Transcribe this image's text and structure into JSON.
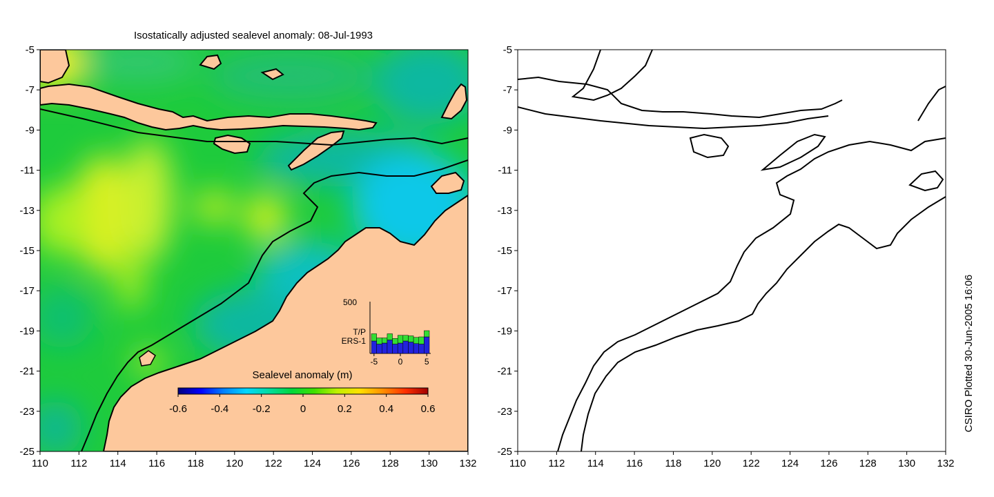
{
  "title": "Isostatically adjusted sealevel anomaly: 08-Jul-1993",
  "credit": "CSIRO Plotted 30-Jun-2005 16:06",
  "colors": {
    "land": "#fdc89c",
    "coast": "#000000",
    "ocean_base": "#1ecb3c"
  },
  "map": {
    "lon_range": [
      110,
      132
    ],
    "lat_range": [
      -25,
      -5
    ],
    "x_ticks": [
      "110",
      "112",
      "114",
      "116",
      "118",
      "120",
      "122",
      "124",
      "126",
      "128",
      "130",
      "132"
    ],
    "y_ticks": [
      "-5",
      "-7",
      "-9",
      "-11",
      "-13",
      "-15",
      "-17",
      "-19",
      "-21",
      "-23",
      "-25"
    ]
  },
  "colorbar": {
    "label": "Sealevel anomaly (m)",
    "ticks": [
      "-0.6",
      "-0.4",
      "-0.2",
      "0",
      "0.2",
      "0.4",
      "0.6"
    ],
    "range": [
      -0.6,
      0.6
    ],
    "colors": [
      "#00007f",
      "#0000ff",
      "#0080ff",
      "#00d8ff",
      "#00dca0",
      "#00d83c",
      "#40e000",
      "#c0f000",
      "#ffe000",
      "#ff9000",
      "#ff3000",
      "#a00000"
    ]
  },
  "inset": {
    "ymax_label": "500",
    "legend": [
      {
        "label": "T/P",
        "color": "#33dd33"
      },
      {
        "label": "ERS-1",
        "color": "#2222dd"
      }
    ],
    "x_ticks": [
      "-5",
      "0",
      "5"
    ],
    "chart_data": {
      "type": "bar",
      "x": [
        -5,
        -4,
        -3,
        -2,
        -1,
        0,
        1,
        2,
        3,
        4,
        5
      ],
      "series": [
        {
          "name": "ERS-1",
          "values": [
            120,
            90,
            100,
            130,
            90,
            100,
            120,
            110,
            95,
            90,
            160
          ]
        },
        {
          "name": "T/P",
          "values": [
            70,
            60,
            50,
            60,
            55,
            75,
            55,
            60,
            60,
            70,
            60
          ]
        }
      ],
      "ylim": [
        0,
        500
      ]
    }
  }
}
